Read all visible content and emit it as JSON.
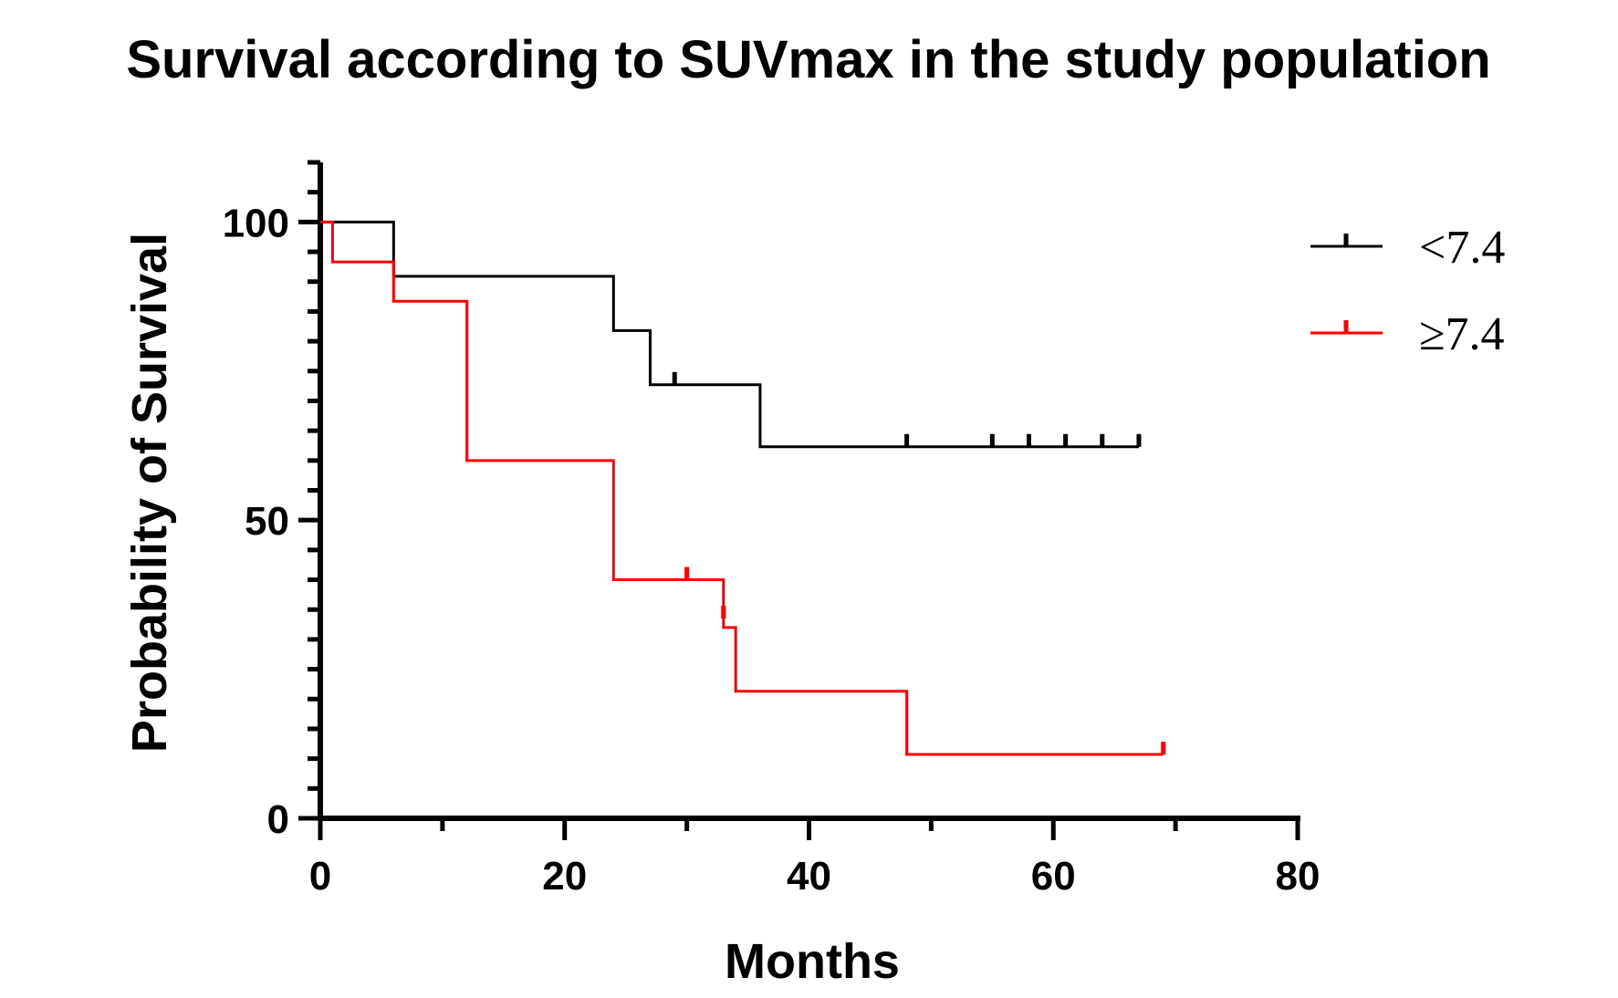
{
  "chart_data": {
    "type": "line",
    "subtype": "kaplan-meier-step",
    "title": "Survival according to SUVmax in the study population",
    "xlabel": "Months",
    "ylabel": "Probability of Survival",
    "xlim": [
      0,
      80
    ],
    "ylim": [
      0,
      110
    ],
    "x_ticks": [
      0,
      20,
      40,
      60,
      80
    ],
    "x_tick_labels": [
      "0",
      "20",
      "40",
      "60",
      "80"
    ],
    "x_minor_step": 10,
    "y_ticks": [
      0,
      50,
      100
    ],
    "y_tick_labels": [
      "0",
      "50",
      "100"
    ],
    "y_minor_step": 5,
    "grid": false,
    "legend_position": "right",
    "series": [
      {
        "name": "<7.4",
        "color": "#000000",
        "steps": [
          [
            0,
            100
          ],
          [
            6,
            90.9
          ],
          [
            24,
            81.8
          ],
          [
            27,
            72.7
          ],
          [
            36,
            62.3
          ],
          [
            67,
            62.3
          ]
        ],
        "censored": [
          [
            29,
            72.7
          ],
          [
            48,
            62.3
          ],
          [
            55,
            62.3
          ],
          [
            58,
            62.3
          ],
          [
            61,
            62.3
          ],
          [
            64,
            62.3
          ],
          [
            67,
            62.3
          ]
        ]
      },
      {
        "name": "≥7.4",
        "color": "#ff0000",
        "steps": [
          [
            0,
            100
          ],
          [
            1,
            93.3
          ],
          [
            6,
            86.7
          ],
          [
            12,
            60
          ],
          [
            24,
            40
          ],
          [
            33,
            32
          ],
          [
            34,
            21.3
          ],
          [
            48,
            10.7
          ],
          [
            69,
            10.7
          ]
        ],
        "censored": [
          [
            30,
            40
          ],
          [
            33,
            33.5
          ],
          [
            69,
            10.7
          ]
        ]
      }
    ]
  }
}
